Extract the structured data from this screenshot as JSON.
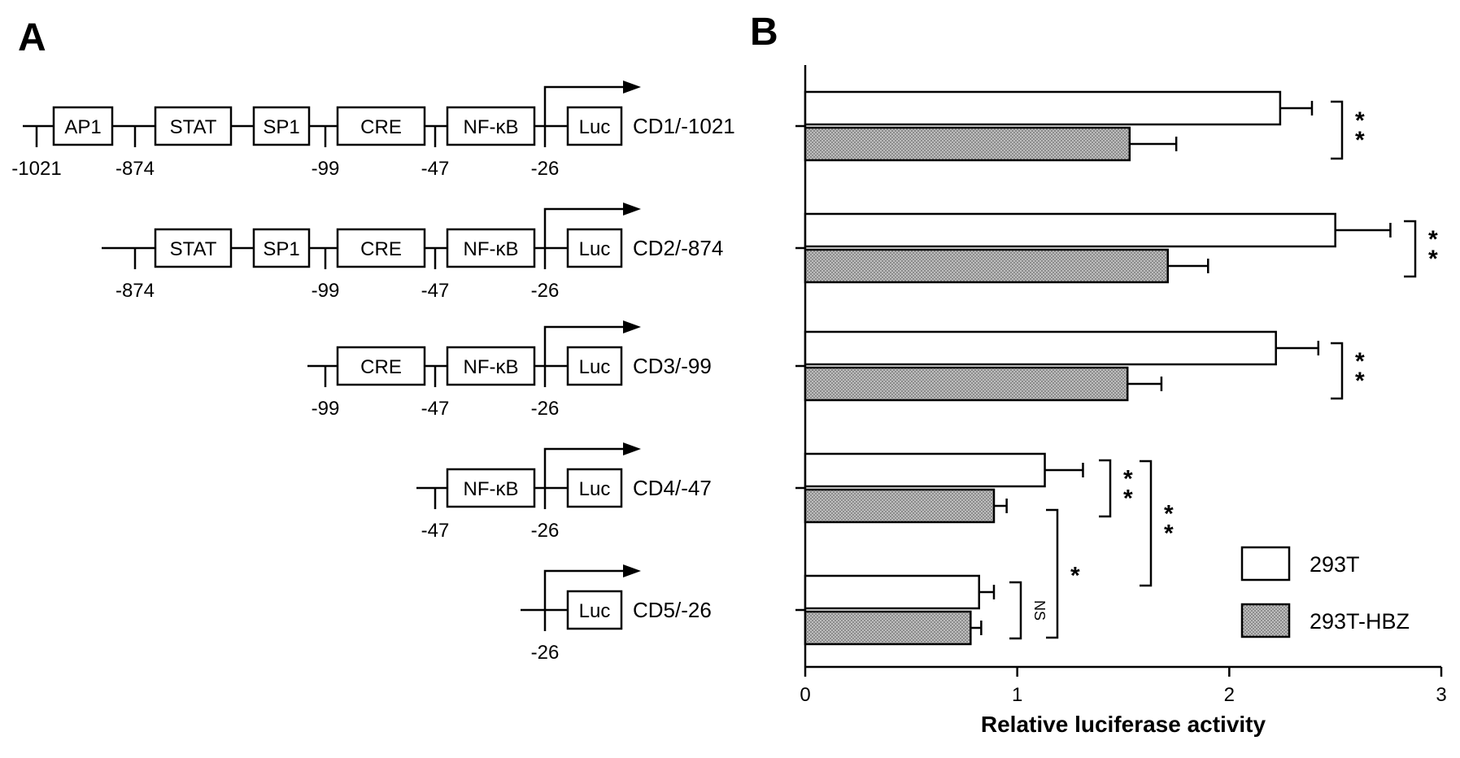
{
  "panels": {
    "a": "A",
    "b": "B"
  },
  "promoter_map": {
    "constructs": [
      {
        "label": "CD1/-1021",
        "elements": [
          "AP1",
          "STAT",
          "SP1",
          "CRE",
          "NF-κB",
          "Luc"
        ],
        "positions": [
          "-1021",
          "-874",
          "-99",
          "-47",
          "-26"
        ]
      },
      {
        "label": "CD2/-874",
        "elements": [
          "STAT",
          "SP1",
          "CRE",
          "NF-κB",
          "Luc"
        ],
        "positions": [
          "-874",
          "-99",
          "-47",
          "-26"
        ]
      },
      {
        "label": "CD3/-99",
        "elements": [
          "CRE",
          "NF-κB",
          "Luc"
        ],
        "positions": [
          "-99",
          "-47",
          "-26"
        ]
      },
      {
        "label": "CD4/-47",
        "elements": [
          "NF-κB",
          "Luc"
        ],
        "positions": [
          "-47",
          "-26"
        ]
      },
      {
        "label": "CD5/-26",
        "elements": [
          "Luc"
        ],
        "positions": [
          "-26"
        ]
      }
    ]
  },
  "chart_data": {
    "type": "bar",
    "orientation": "horizontal",
    "categories": [
      "CD1/-1021",
      "CD2/-874",
      "CD3/-99",
      "CD4/-47",
      "CD5/-26"
    ],
    "series": [
      {
        "name": "293T",
        "values": [
          2.24,
          2.5,
          2.22,
          1.13,
          0.82
        ],
        "errors": [
          0.15,
          0.26,
          0.2,
          0.18,
          0.07
        ],
        "color": "#ffffff"
      },
      {
        "name": "293T-HBZ",
        "values": [
          1.53,
          1.71,
          1.52,
          0.89,
          0.78
        ],
        "errors": [
          0.22,
          0.19,
          0.16,
          0.06,
          0.05
        ],
        "color": "#a8a8a8"
      }
    ],
    "xlabel": "Relative luciferase activity",
    "xlim": [
      0,
      3
    ],
    "xticks": [
      "0",
      "1",
      "2",
      "3"
    ],
    "legend": {
      "placement": "bottom-right",
      "entries": [
        "293T",
        "293T-HBZ"
      ]
    },
    "significance": [
      {
        "between": "CD1 293T vs 293T-HBZ",
        "label": "**"
      },
      {
        "between": "CD2 293T vs 293T-HBZ",
        "label": "**"
      },
      {
        "between": "CD3 293T vs 293T-HBZ",
        "label": "**"
      },
      {
        "between": "CD4 293T vs 293T-HBZ",
        "label": "**"
      },
      {
        "between": "CD4 293T vs CD5 293T",
        "label": "**"
      },
      {
        "between": "CD4 293T-HBZ vs CD5 293T-HBZ",
        "label": "*"
      },
      {
        "between": "CD5 293T vs 293T-HBZ",
        "label": "NS"
      }
    ]
  }
}
